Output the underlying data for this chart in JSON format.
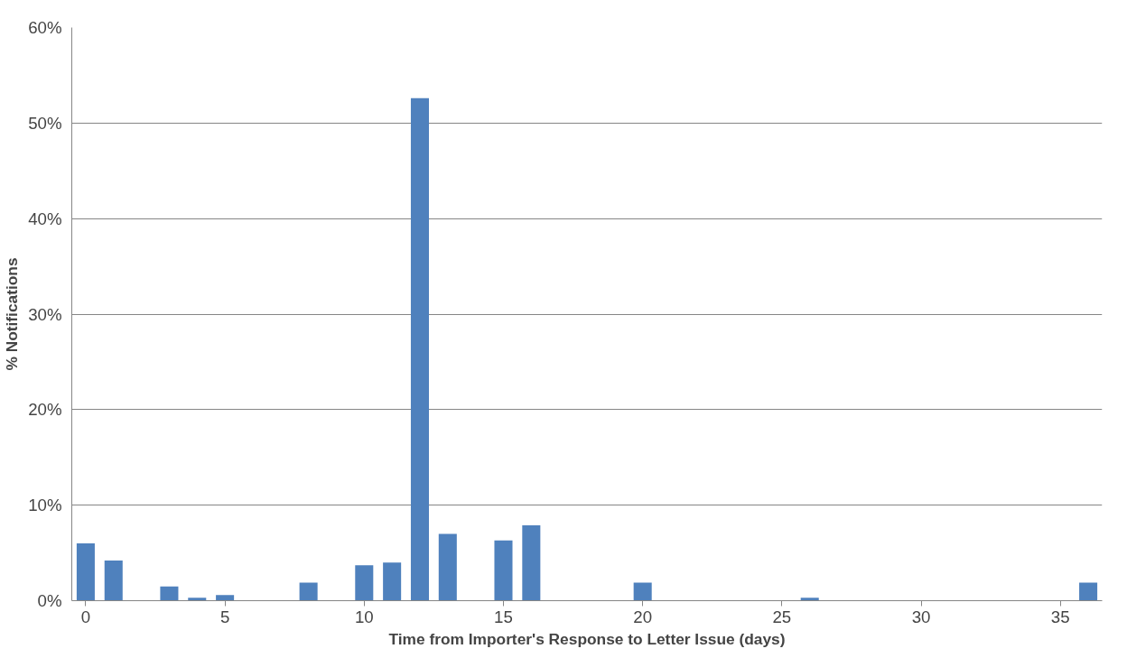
{
  "chart_data": {
    "type": "bar",
    "xlabel": "Time from Importer's Response to Letter Issue (days)",
    "ylabel": "% Notifications",
    "x": [
      0,
      1,
      3,
      4,
      5,
      8,
      10,
      11,
      12,
      13,
      15,
      16,
      20,
      26,
      36
    ],
    "values": [
      6.0,
      4.2,
      1.5,
      0.3,
      0.6,
      1.9,
      3.7,
      4.0,
      52.6,
      7.0,
      6.3,
      7.9,
      1.9,
      0.3,
      1.9
    ],
    "color": "#4f81bd",
    "xlim": [
      -0.5,
      36.5
    ],
    "xticks": [
      0,
      5,
      10,
      15,
      20,
      25,
      30,
      35
    ],
    "ylim": [
      0,
      60
    ],
    "yticks": [
      {
        "value": 0,
        "label": "0%"
      },
      {
        "value": 10,
        "label": "10%"
      },
      {
        "value": 20,
        "label": "20%"
      },
      {
        "value": 30,
        "label": "30%"
      },
      {
        "value": 40,
        "label": "40%"
      },
      {
        "value": 50,
        "label": "50%"
      },
      {
        "value": 60,
        "label": "60%"
      }
    ],
    "grid": "y"
  }
}
